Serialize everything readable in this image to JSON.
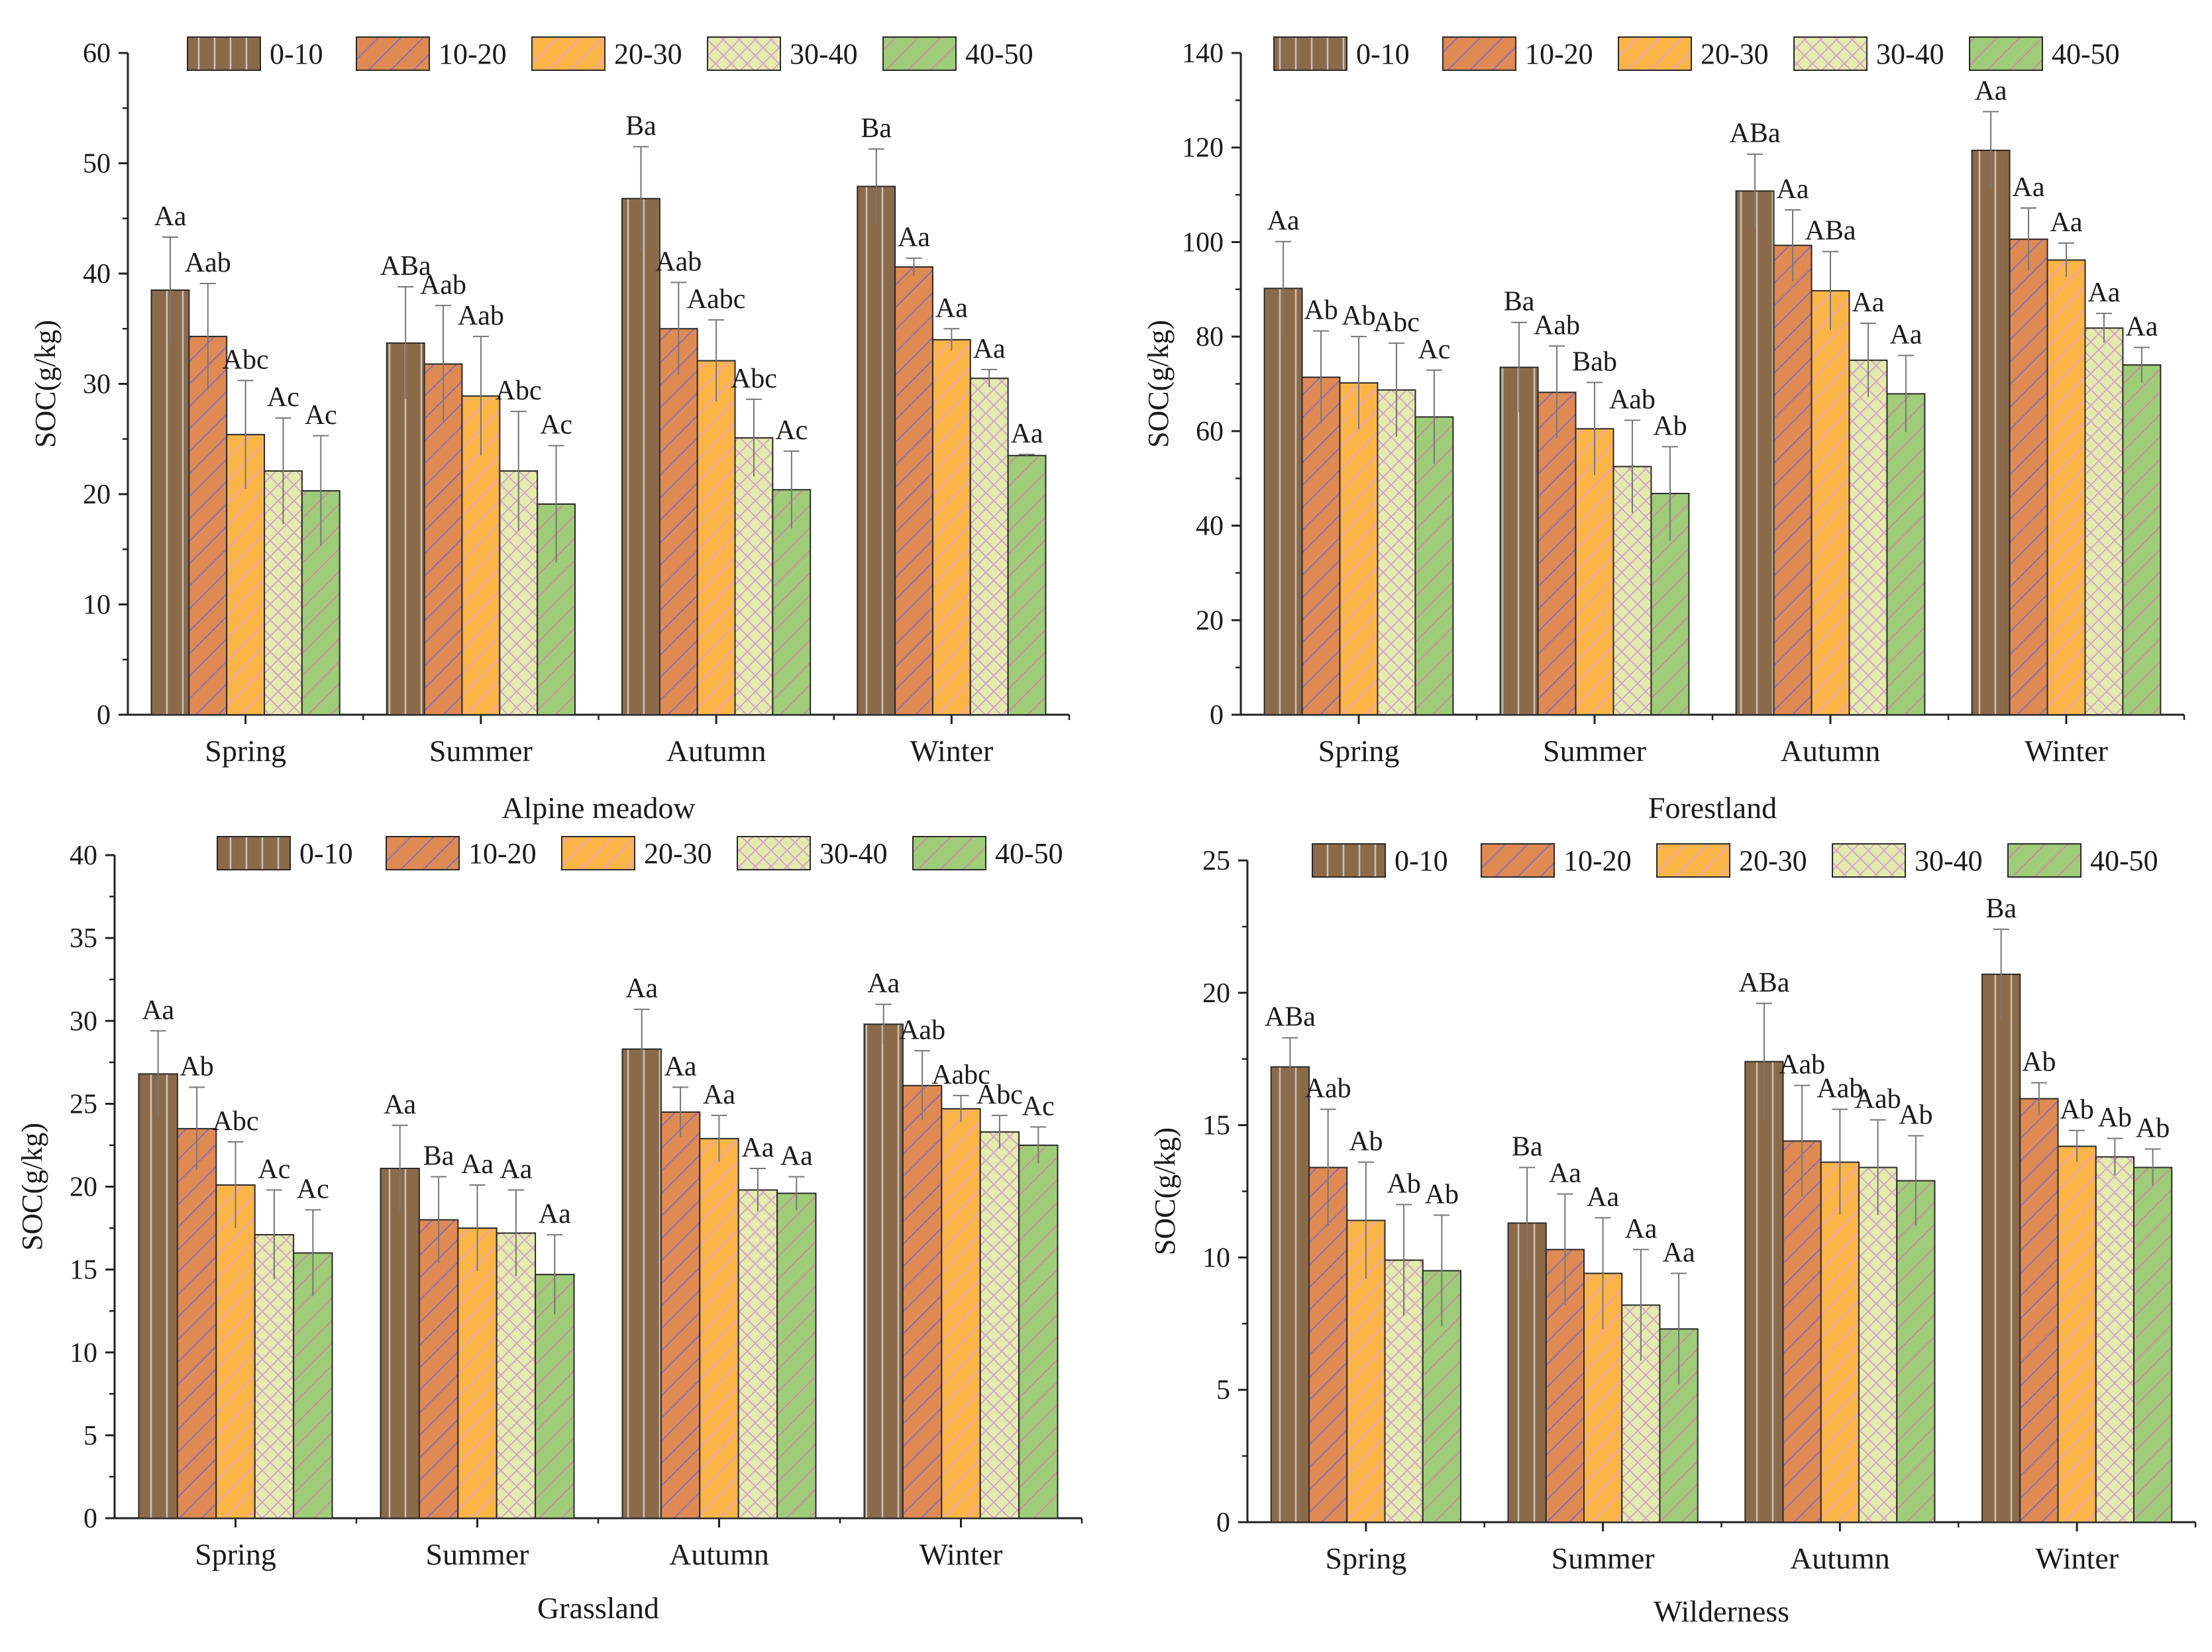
{
  "figure": {
    "series_names": [
      "0-10",
      "10-20",
      "20-30",
      "30-40",
      "40-50"
    ],
    "series_colors": [
      "#8b6a4a",
      "#df8a52",
      "#fbb547",
      "#e3ecaa",
      "#9ecc78"
    ],
    "pattern_line_colors": [
      "#c9c2b8",
      "#8a6fb8",
      "#e8a0c8",
      "#d9a0d0",
      "#d08aa0"
    ]
  },
  "chart_data": [
    {
      "type": "bar",
      "title": "Alpine meadow",
      "ylabel": "SOC(g/kg)",
      "xlabel": "",
      "ylim": [
        0,
        60
      ],
      "yticks": [
        0,
        10,
        20,
        30,
        40,
        50,
        60
      ],
      "categories": [
        "Spring",
        "Summer",
        "Autumn",
        "Winter"
      ],
      "series": [
        {
          "name": "0-10",
          "values": [
            38.5,
            33.7,
            46.8,
            47.9
          ],
          "errors": [
            4.8,
            5.1,
            4.7,
            3.4
          ],
          "labels": [
            "Aa",
            "ABa",
            "Ba",
            "Ba"
          ]
        },
        {
          "name": "10-20",
          "values": [
            34.3,
            31.8,
            35.0,
            40.6
          ],
          "errors": [
            4.8,
            5.3,
            4.2,
            0.8
          ],
          "labels": [
            "Aab",
            "Aab",
            "Aab",
            "Aa"
          ]
        },
        {
          "name": "20-30",
          "values": [
            25.4,
            28.9,
            32.1,
            34.0
          ],
          "errors": [
            4.9,
            5.4,
            3.7,
            1.0
          ],
          "labels": [
            "Abc",
            "Aab",
            "Aabc",
            "Aa"
          ]
        },
        {
          "name": "30-40",
          "values": [
            22.1,
            22.1,
            25.1,
            30.5
          ],
          "errors": [
            4.8,
            5.4,
            3.5,
            0.8
          ],
          "labels": [
            "Ac",
            "Abc",
            "Abc",
            "Aa"
          ]
        },
        {
          "name": "40-50",
          "values": [
            20.3,
            19.1,
            20.4,
            23.5
          ],
          "errors": [
            5.0,
            5.3,
            3.5,
            0.1
          ],
          "labels": [
            "Ac",
            "Ac",
            "Ac",
            "Aa"
          ]
        }
      ]
    },
    {
      "type": "bar",
      "title": "Forestland",
      "ylabel": "SOC(g/kg)",
      "xlabel": "",
      "ylim": [
        0,
        140
      ],
      "yticks": [
        0,
        20,
        40,
        60,
        80,
        100,
        120,
        140
      ],
      "categories": [
        "Spring",
        "Summer",
        "Autumn",
        "Winter"
      ],
      "series": [
        {
          "name": "0-10",
          "values": [
            90.2,
            73.5,
            110.8,
            119.4
          ],
          "errors": [
            9.9,
            9.5,
            7.8,
            8.2
          ],
          "labels": [
            "Aa",
            "Ba",
            "ABa",
            "Aa"
          ]
        },
        {
          "name": "10-20",
          "values": [
            71.4,
            68.2,
            99.3,
            100.6
          ],
          "errors": [
            9.8,
            9.8,
            7.5,
            6.6
          ],
          "labels": [
            "Ab",
            "Aab",
            "Aa",
            "Aa"
          ]
        },
        {
          "name": "20-30",
          "values": [
            70.2,
            60.5,
            89.7,
            96.2
          ],
          "errors": [
            9.8,
            9.8,
            8.3,
            3.6
          ],
          "labels": [
            "Ab",
            "Bab",
            "ABa",
            "Aa"
          ]
        },
        {
          "name": "30-40",
          "values": [
            68.7,
            52.5,
            75.0,
            81.8
          ],
          "errors": [
            9.9,
            9.8,
            7.8,
            3.1
          ],
          "labels": [
            "Abc",
            "Aab",
            "Aa",
            "Aa"
          ]
        },
        {
          "name": "40-50",
          "values": [
            63.0,
            46.8,
            67.9,
            74.0
          ],
          "errors": [
            9.9,
            9.9,
            8.1,
            3.7
          ],
          "labels": [
            "Ac",
            "Ab",
            "Aa",
            "Aa"
          ]
        }
      ]
    },
    {
      "type": "bar",
      "title": "Grassland",
      "ylabel": "SOC(g/kg)",
      "xlabel": "",
      "ylim": [
        0,
        40
      ],
      "yticks": [
        0,
        5,
        10,
        15,
        20,
        25,
        30,
        35,
        40
      ],
      "categories": [
        "Spring",
        "Summer",
        "Autumn",
        "Winter"
      ],
      "series": [
        {
          "name": "0-10",
          "values": [
            26.8,
            21.1,
            28.3,
            29.8
          ],
          "errors": [
            2.6,
            2.6,
            2.4,
            1.2
          ],
          "labels": [
            "Aa",
            "Aa",
            "Aa",
            "Aa"
          ]
        },
        {
          "name": "10-20",
          "values": [
            23.5,
            18.0,
            24.5,
            26.1
          ],
          "errors": [
            2.5,
            2.6,
            1.5,
            2.1
          ],
          "labels": [
            "Ab",
            "Ba",
            "Aa",
            "Aab"
          ]
        },
        {
          "name": "20-30",
          "values": [
            20.1,
            17.5,
            22.9,
            24.7
          ],
          "errors": [
            2.6,
            2.6,
            1.4,
            0.8
          ],
          "labels": [
            "Abc",
            "Aa",
            "Aa",
            "Aabc"
          ]
        },
        {
          "name": "30-40",
          "values": [
            17.1,
            17.2,
            19.8,
            23.3
          ],
          "errors": [
            2.7,
            2.6,
            1.3,
            1.0
          ],
          "labels": [
            "Ac",
            "Aa",
            "Aa",
            "Abc"
          ]
        },
        {
          "name": "40-50",
          "values": [
            16.0,
            14.7,
            19.6,
            22.5
          ],
          "errors": [
            2.6,
            2.4,
            1.0,
            1.1
          ],
          "labels": [
            "Ac",
            "Aa",
            "Aa",
            "Ac"
          ]
        }
      ]
    },
    {
      "type": "bar",
      "title": "Wilderness",
      "ylabel": "SOC(g/kg)",
      "xlabel": "",
      "ylim": [
        0,
        25
      ],
      "yticks": [
        0,
        5,
        10,
        15,
        20,
        25
      ],
      "categories": [
        "Spring",
        "Summer",
        "Autumn",
        "Winter"
      ],
      "series": [
        {
          "name": "0-10",
          "values": [
            17.2,
            11.3,
            17.4,
            20.7
          ],
          "errors": [
            1.1,
            2.1,
            2.2,
            1.7
          ],
          "labels": [
            "ABa",
            "Ba",
            "ABa",
            "Ba"
          ]
        },
        {
          "name": "10-20",
          "values": [
            13.4,
            10.3,
            14.4,
            16.0
          ],
          "errors": [
            2.2,
            2.1,
            2.1,
            0.6
          ],
          "labels": [
            "Aab",
            "Aa",
            "Aab",
            "Ab"
          ]
        },
        {
          "name": "20-30",
          "values": [
            11.4,
            9.4,
            13.6,
            14.2
          ],
          "errors": [
            2.2,
            2.1,
            2.0,
            0.6
          ],
          "labels": [
            "Ab",
            "Aa",
            "Aab",
            "Ab"
          ]
        },
        {
          "name": "30-40",
          "values": [
            9.9,
            8.2,
            13.4,
            13.8
          ],
          "errors": [
            2.1,
            2.1,
            1.8,
            0.7
          ],
          "labels": [
            "Ab",
            "Aa",
            "Aab",
            "Ab"
          ]
        },
        {
          "name": "40-50",
          "values": [
            9.5,
            7.3,
            12.9,
            13.4
          ],
          "errors": [
            2.1,
            2.1,
            1.7,
            0.7
          ],
          "labels": [
            "Ab",
            "Aa",
            "Ab",
            "Ab"
          ]
        }
      ]
    }
  ]
}
